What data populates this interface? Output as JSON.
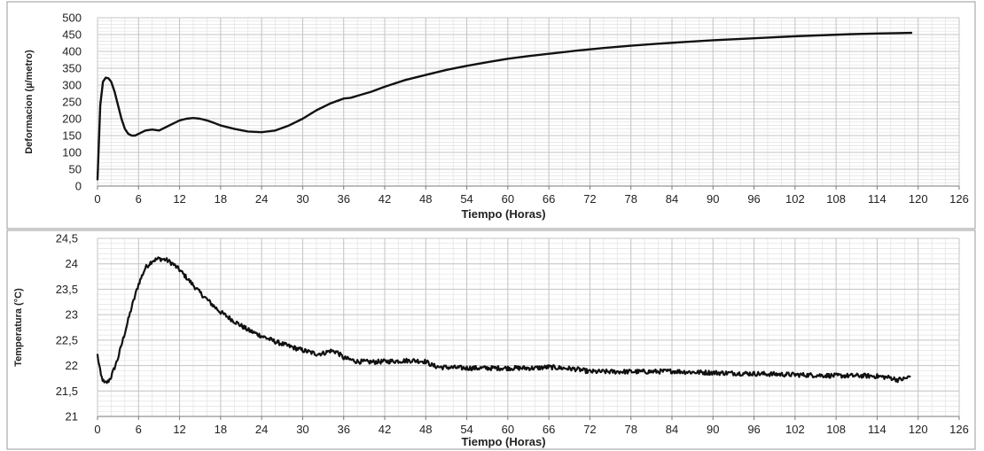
{
  "chart_data": [
    {
      "type": "line",
      "title": "",
      "xlabel": "Tiempo (Horas)",
      "ylabel": "Deformacion (µ/metro)",
      "xlim": [
        0,
        126
      ],
      "ylim": [
        0,
        500
      ],
      "xticks": [
        0,
        6,
        12,
        18,
        24,
        30,
        36,
        42,
        48,
        54,
        60,
        66,
        72,
        78,
        84,
        90,
        96,
        102,
        108,
        114,
        120,
        126
      ],
      "yticks": [
        0,
        50,
        100,
        150,
        200,
        250,
        300,
        350,
        400,
        450,
        500
      ],
      "ytick_labels": [
        "0",
        "50",
        "100",
        "150",
        "200",
        "250",
        "300",
        "350",
        "400",
        "450",
        "500"
      ],
      "grid": true,
      "line_color": "#111111",
      "series": [
        {
          "x": [
            0,
            0.4,
            0.8,
            1.2,
            1.6,
            2,
            2.5,
            3,
            3.5,
            4,
            4.5,
            5,
            5.5,
            6,
            7,
            8,
            9,
            10,
            11,
            12,
            13,
            14,
            15,
            16,
            17,
            18,
            20,
            22,
            24,
            26,
            28,
            30,
            32,
            34,
            36,
            37,
            38,
            40,
            42,
            45,
            48,
            51,
            54,
            57,
            60,
            63,
            66,
            70,
            74,
            78,
            82,
            86,
            90,
            94,
            98,
            102,
            106,
            110,
            114,
            119
          ],
          "values": [
            20,
            240,
            310,
            322,
            320,
            310,
            280,
            240,
            200,
            170,
            155,
            150,
            150,
            155,
            165,
            168,
            165,
            175,
            185,
            195,
            200,
            202,
            200,
            195,
            188,
            180,
            170,
            162,
            160,
            165,
            180,
            200,
            225,
            245,
            260,
            262,
            268,
            280,
            295,
            315,
            330,
            345,
            357,
            368,
            378,
            386,
            393,
            402,
            410,
            417,
            423,
            428,
            433,
            437,
            441,
            445,
            448,
            451,
            453,
            455
          ]
        }
      ]
    },
    {
      "type": "line",
      "title": "",
      "xlabel": "Tiempo (Horas)",
      "ylabel": "Temperatura (°C)",
      "xlim": [
        0,
        126
      ],
      "ylim": [
        21,
        24.5
      ],
      "xticks": [
        0,
        6,
        12,
        18,
        24,
        30,
        36,
        42,
        48,
        54,
        60,
        66,
        72,
        78,
        84,
        90,
        96,
        102,
        108,
        114,
        120,
        126
      ],
      "yticks": [
        21,
        21.5,
        22,
        22.5,
        23,
        23.5,
        24,
        24.5
      ],
      "ytick_labels": [
        "21",
        "21,5",
        "22",
        "22,5",
        "23",
        "23,5",
        "24",
        "24,5"
      ],
      "grid": true,
      "line_color": "#111111",
      "series": [
        {
          "x": [
            0,
            0.5,
            1,
            1.5,
            2,
            3,
            4,
            5,
            6,
            7,
            8,
            9,
            10,
            11,
            12,
            13,
            14,
            15,
            16,
            17,
            18,
            20,
            22,
            24,
            26,
            28,
            30,
            32,
            33,
            34,
            35,
            36,
            38,
            40,
            42,
            44,
            46,
            48,
            49,
            50,
            52,
            54,
            56,
            58,
            60,
            62,
            64,
            66,
            68,
            70,
            72,
            75,
            78,
            81,
            84,
            87,
            90,
            93,
            96,
            99,
            102,
            105,
            108,
            110,
            112,
            114,
            116,
            117,
            118,
            118.8
          ],
          "values": [
            22.2,
            21.8,
            21.65,
            21.68,
            21.78,
            22.15,
            22.65,
            23.15,
            23.6,
            23.92,
            24.06,
            24.1,
            24.08,
            24.0,
            23.88,
            23.73,
            23.58,
            23.43,
            23.3,
            23.17,
            23.05,
            22.87,
            22.7,
            22.58,
            22.47,
            22.38,
            22.3,
            22.23,
            22.24,
            22.29,
            22.27,
            22.15,
            22.08,
            22.07,
            22.08,
            22.09,
            22.1,
            22.08,
            22.0,
            21.97,
            21.96,
            21.95,
            21.95,
            21.95,
            21.95,
            21.95,
            21.95,
            21.97,
            21.95,
            21.93,
            21.88,
            21.88,
            21.88,
            21.88,
            21.89,
            21.87,
            21.86,
            21.85,
            21.84,
            21.83,
            21.82,
            21.81,
            21.8,
            21.8,
            21.8,
            21.79,
            21.76,
            21.72,
            21.74,
            21.78
          ]
        }
      ]
    }
  ]
}
